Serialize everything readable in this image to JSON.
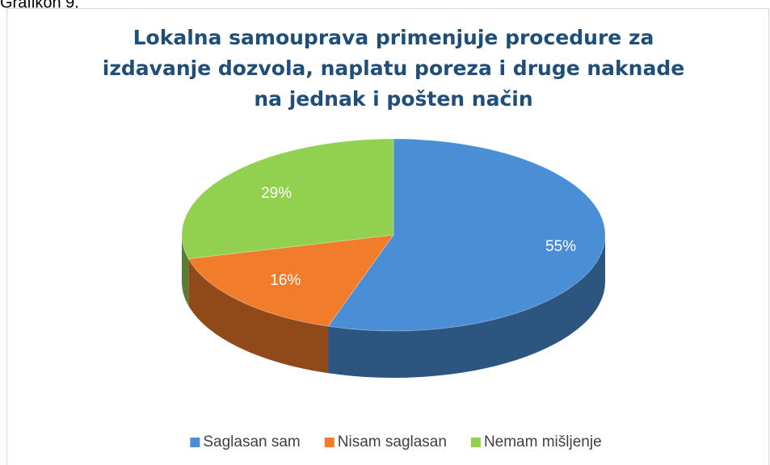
{
  "caption": "Grafikon 9.",
  "chart_data": {
    "type": "pie",
    "title": [
      "Lokalna samouprava primenjuje procedure  za",
      "izdavanje dozvola, naplatu poreza i druge naknade",
      "na jednak i pošten način"
    ],
    "categories": [
      "Saglasan sam",
      "Nisam saglasan",
      "Nemam mišljenje"
    ],
    "values": [
      55,
      16,
      29
    ],
    "value_labels": [
      "55%",
      "16%",
      "29%"
    ],
    "colors": [
      "#4a8fd6",
      "#f07c2c",
      "#92d050"
    ],
    "legend": "bottom"
  }
}
